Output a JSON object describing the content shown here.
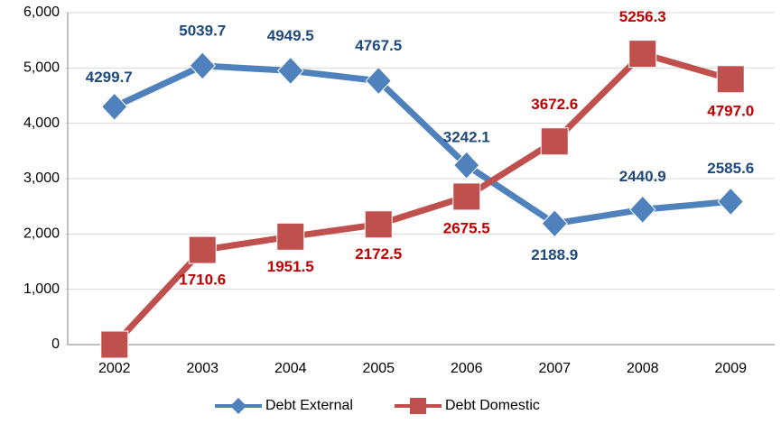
{
  "chart_data": {
    "type": "line",
    "categories": [
      "2002",
      "2003",
      "2004",
      "2005",
      "2006",
      "2007",
      "2008",
      "2009"
    ],
    "series": [
      {
        "name": "Debt External",
        "color": "#4f81bd",
        "label_color": "#1f497d",
        "marker": "diamond",
        "values": [
          4299.7,
          5039.7,
          4949.5,
          4767.5,
          3242.1,
          2188.9,
          2440.9,
          2585.6
        ]
      },
      {
        "name": "Debt Domestic",
        "color": "#c0504d",
        "label_color": "#c00000",
        "marker": "square",
        "values": [
          0,
          1710.6,
          1951.5,
          2172.5,
          2675.5,
          3672.6,
          5256.3,
          4797
        ],
        "value_labels": [
          null,
          "1710.6",
          "1951.5",
          "2172.5",
          "2675.5",
          "3672.6",
          "5256.3",
          "4797.0"
        ]
      }
    ],
    "ylim": [
      0,
      6000
    ],
    "yticks": [
      0,
      {
        "value": 1000,
        "label": "1,000"
      },
      {
        "value": 2000,
        "label": "2,000"
      },
      {
        "value": 3000,
        "label": "3,000"
      },
      {
        "value": 4000,
        "label": "4,000"
      },
      {
        "value": 5000,
        "label": "5,000"
      },
      {
        "value": 6000,
        "label": "6,000"
      }
    ],
    "grid": true,
    "legend": "bottom"
  }
}
